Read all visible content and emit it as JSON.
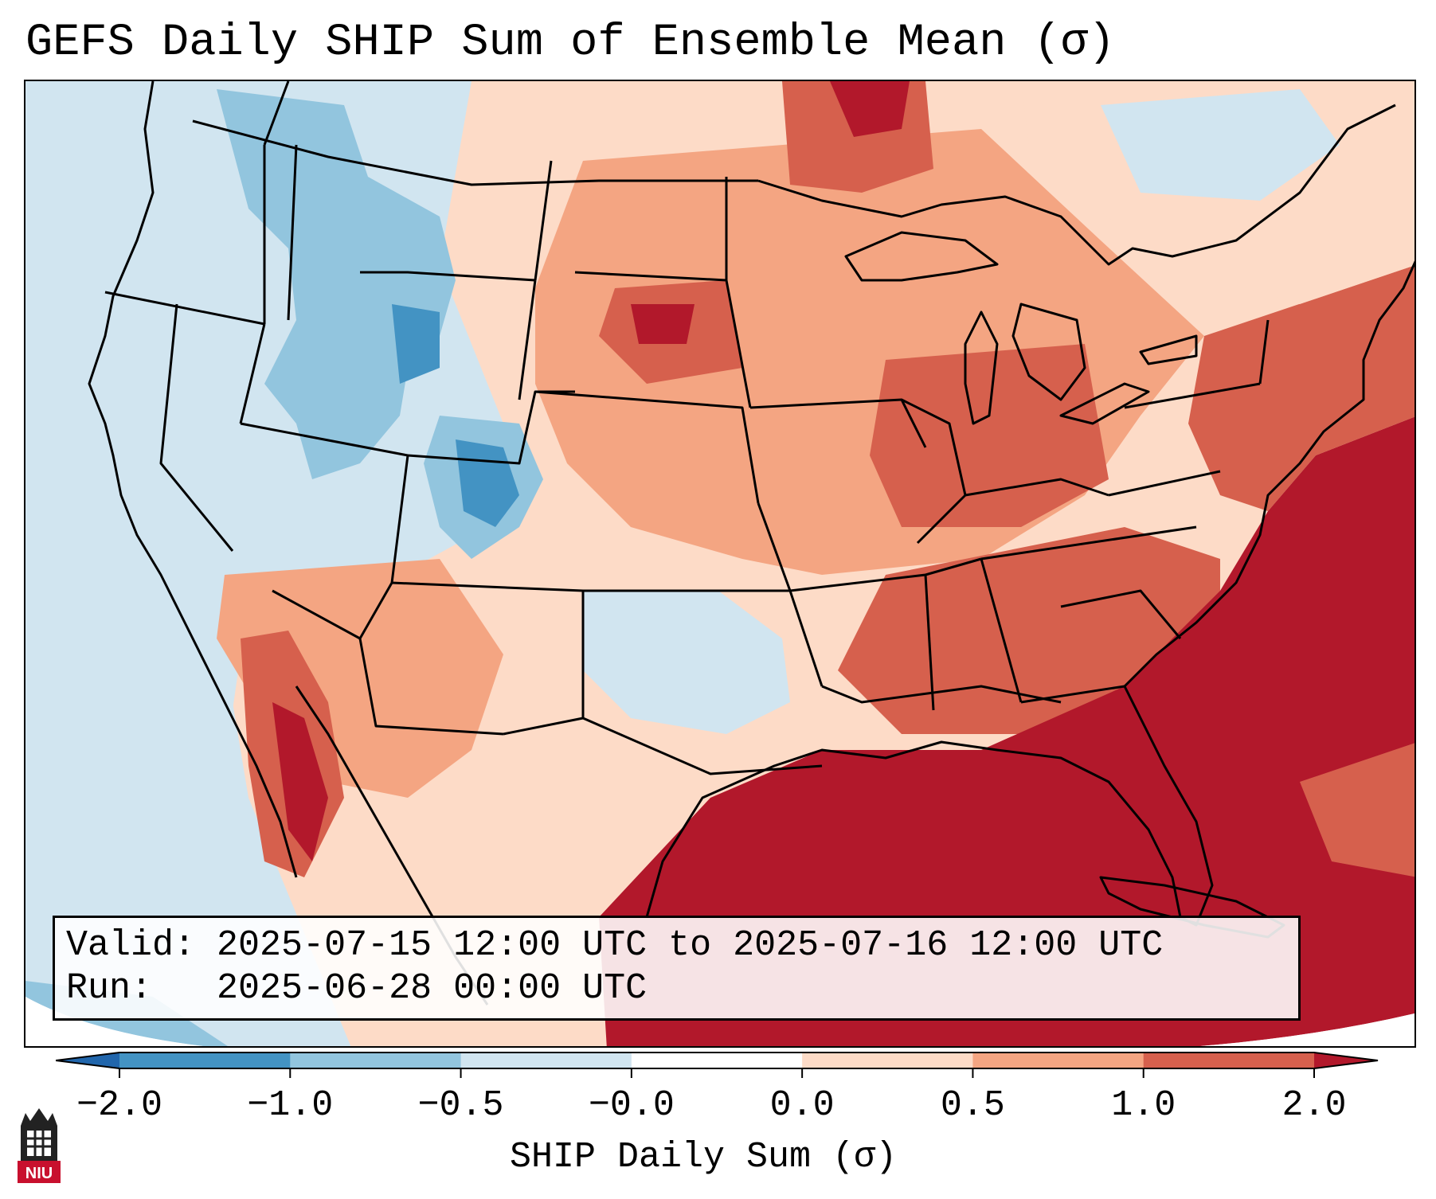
{
  "title": "GEFS Daily SHIP Sum of Ensemble Mean (σ)",
  "info": {
    "valid_label": "Valid:",
    "valid_value": "2025-07-15 12:00 UTC to 2025-07-16 12:00 UTC",
    "run_label": "Run:",
    "run_value": "2025-06-28 00:00 UTC"
  },
  "colorbar": {
    "label": "SHIP Daily Sum (σ)",
    "tick_labels": [
      "−2.0",
      "−1.0",
      "−0.5",
      "−0.0",
      "0.0",
      "0.5",
      "1.0",
      "2.0"
    ],
    "colors": [
      "#2166ac",
      "#4393c3",
      "#92c5de",
      "#d1e5f0",
      "#ffffff",
      "#fddbc7",
      "#f4a582",
      "#d6604d",
      "#b2182b"
    ],
    "under_color": "#2166ac",
    "over_color": "#b2182b"
  },
  "logo": {
    "text": "NIU",
    "name": "niu-logo-icon",
    "color": "#c8102e"
  }
}
